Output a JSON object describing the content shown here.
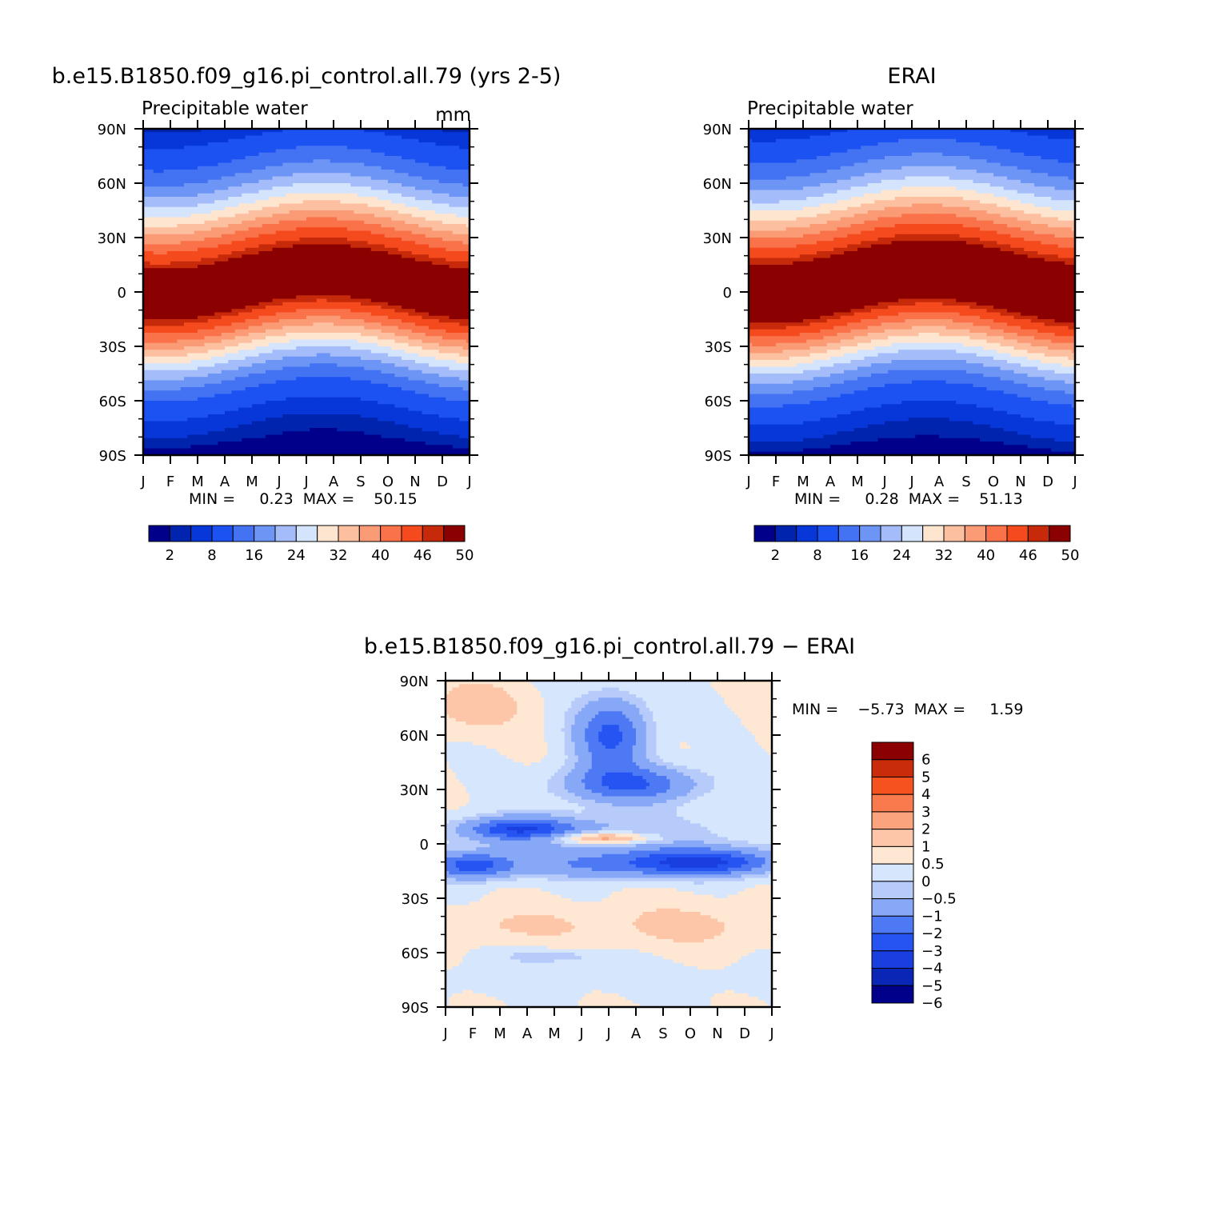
{
  "colors": {
    "model_palette": [
      "#00008a",
      "#0024ad",
      "#0737d8",
      "#1c52f2",
      "#4373f2",
      "#6c95f5",
      "#a4bcf9",
      "#d5e4fd",
      "#fee5d0",
      "#fcbf9f",
      "#fb9b76",
      "#fa7249",
      "#f44a1d",
      "#c62a0a",
      "#8b0000"
    ],
    "diff_palette": [
      "#00008a",
      "#0a26b7",
      "#1a3fe0",
      "#2554f2",
      "#4e79f4",
      "#86a8f6",
      "#b7cbfa",
      "#d6e6fd",
      "#fee7d3",
      "#fdc6a8",
      "#fba37c",
      "#f97a4d",
      "#f45320",
      "#c92c0a",
      "#8b0000"
    ]
  },
  "chart_data": [
    {
      "id": "model",
      "type": "heatmap",
      "title": "b.e15.B1850.f09_g16.pi_control.all.79 (yrs 2-5)",
      "subtitle": "Precipitable water",
      "units": "mm",
      "x_ticks": [
        "J",
        "F",
        "M",
        "A",
        "M",
        "J",
        "J",
        "A",
        "S",
        "O",
        "N",
        "D",
        "J"
      ],
      "y_ticks": [
        "90N",
        "60N",
        "30N",
        "0",
        "30S",
        "60S",
        "90S"
      ],
      "xlim": [
        0,
        12
      ],
      "ylim": [
        -90,
        90
      ],
      "stats": "MIN =     0.23  MAX =    50.15",
      "field": {
        "peak": 50.15,
        "base": 0.23,
        "mean_lat": 4,
        "seasonal_amp": 7,
        "peak_month": 6.6,
        "width": 30,
        "north_boost": 6
      },
      "levels": [
        1,
        2,
        4,
        8,
        12,
        16,
        20,
        24,
        28,
        32,
        36,
        40,
        44,
        46,
        48,
        50
      ],
      "colorbar": {
        "labels": [
          {
            "text": "2",
            "after": 1
          },
          {
            "text": "8",
            "after": 3
          },
          {
            "text": "16",
            "after": 5
          },
          {
            "text": "24",
            "after": 7
          },
          {
            "text": "32",
            "after": 9
          },
          {
            "text": "40",
            "after": 11
          },
          {
            "text": "46",
            "after": 13
          },
          {
            "text": "50",
            "after": 15
          }
        ]
      }
    },
    {
      "id": "obs",
      "type": "heatmap",
      "title": "ERAI",
      "subtitle": "Precipitable water",
      "units": "",
      "x_ticks": [
        "J",
        "F",
        "M",
        "A",
        "M",
        "J",
        "J",
        "A",
        "S",
        "O",
        "N",
        "D",
        "J"
      ],
      "y_ticks": [
        "90N",
        "60N",
        "30N",
        "0",
        "30S",
        "60S",
        "90S"
      ],
      "xlim": [
        0,
        12
      ],
      "ylim": [
        -90,
        90
      ],
      "stats": "MIN =     0.28  MAX =    51.13",
      "field": {
        "peak": 51.13,
        "base": 0.28,
        "mean_lat": 4,
        "seasonal_amp": 7,
        "peak_month": 6.6,
        "width": 31,
        "north_boost": 7
      },
      "levels": [
        1,
        2,
        4,
        8,
        12,
        16,
        20,
        24,
        28,
        32,
        36,
        40,
        44,
        46,
        48,
        50
      ],
      "colorbar": {
        "labels": [
          {
            "text": "2",
            "after": 1
          },
          {
            "text": "8",
            "after": 3
          },
          {
            "text": "16",
            "after": 5
          },
          {
            "text": "24",
            "after": 7
          },
          {
            "text": "32",
            "after": 9
          },
          {
            "text": "40",
            "after": 11
          },
          {
            "text": "46",
            "after": 13
          },
          {
            "text": "50",
            "after": 15
          }
        ]
      }
    },
    {
      "id": "diff",
      "type": "heatmap",
      "title": "b.e15.B1850.f09_g16.pi_control.all.79 − ERAI",
      "x_ticks": [
        "J",
        "F",
        "M",
        "A",
        "M",
        "J",
        "J",
        "A",
        "S",
        "O",
        "N",
        "D",
        "J"
      ],
      "y_ticks": [
        "90N",
        "60N",
        "30N",
        "0",
        "30S",
        "60S",
        "90S"
      ],
      "xlim": [
        0,
        12
      ],
      "ylim": [
        -90,
        90
      ],
      "stats": "MIN =    −5.73  MAX =     1.59",
      "levels": [
        -6,
        -5,
        -4,
        -3,
        -2,
        -1,
        -0.5,
        0,
        0.5,
        1,
        2,
        3,
        4,
        5,
        6
      ],
      "colorbar": {
        "labels": [
          "6",
          "5",
          "4",
          "3",
          "2",
          "1",
          "0.5",
          "0",
          "−0.5",
          "−1",
          "−2",
          "−3",
          "−4",
          "−5",
          "−6"
        ]
      }
    }
  ]
}
